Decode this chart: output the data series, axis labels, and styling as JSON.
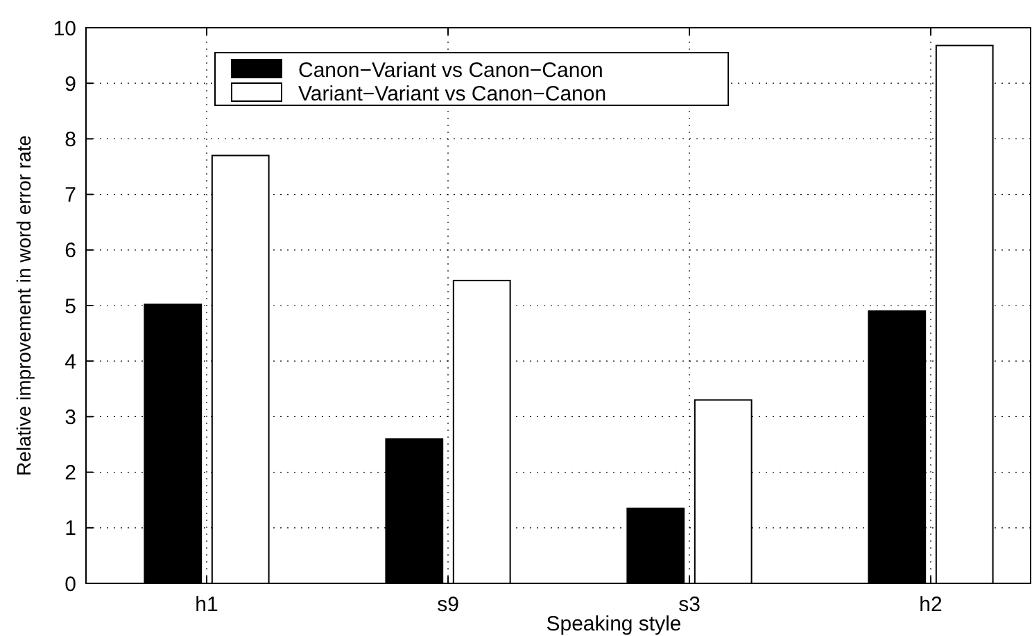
{
  "chart_data": {
    "type": "bar",
    "xlabel": "Speaking style",
    "ylabel": "Relative improvement in word error rate",
    "categories": [
      "h1",
      "s9",
      "s3",
      "h2"
    ],
    "series": [
      {
        "name": "Canon−Variant vs Canon−Canon",
        "color": "#000000",
        "values": [
          5.02,
          2.6,
          1.35,
          4.9
        ]
      },
      {
        "name": "Variant−Variant vs Canon−Canon",
        "color": "#ffffff",
        "values": [
          7.7,
          5.45,
          3.3,
          9.68
        ]
      }
    ],
    "ylim": [
      0,
      10
    ],
    "yticks": [
      0,
      1,
      2,
      3,
      4,
      5,
      6,
      7,
      8,
      9,
      10
    ],
    "grid": true,
    "legend": "top left"
  }
}
